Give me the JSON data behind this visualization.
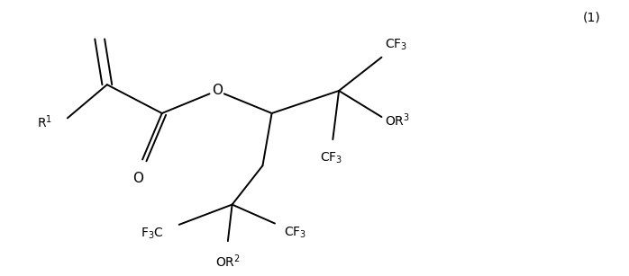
{
  "background_color": "#ffffff",
  "line_color": "#000000",
  "text_color": "#000000",
  "label_fontsize": 10,
  "equation_number": "(1)",
  "fig_width": 6.98,
  "fig_height": 3.07,
  "dpi": 100
}
